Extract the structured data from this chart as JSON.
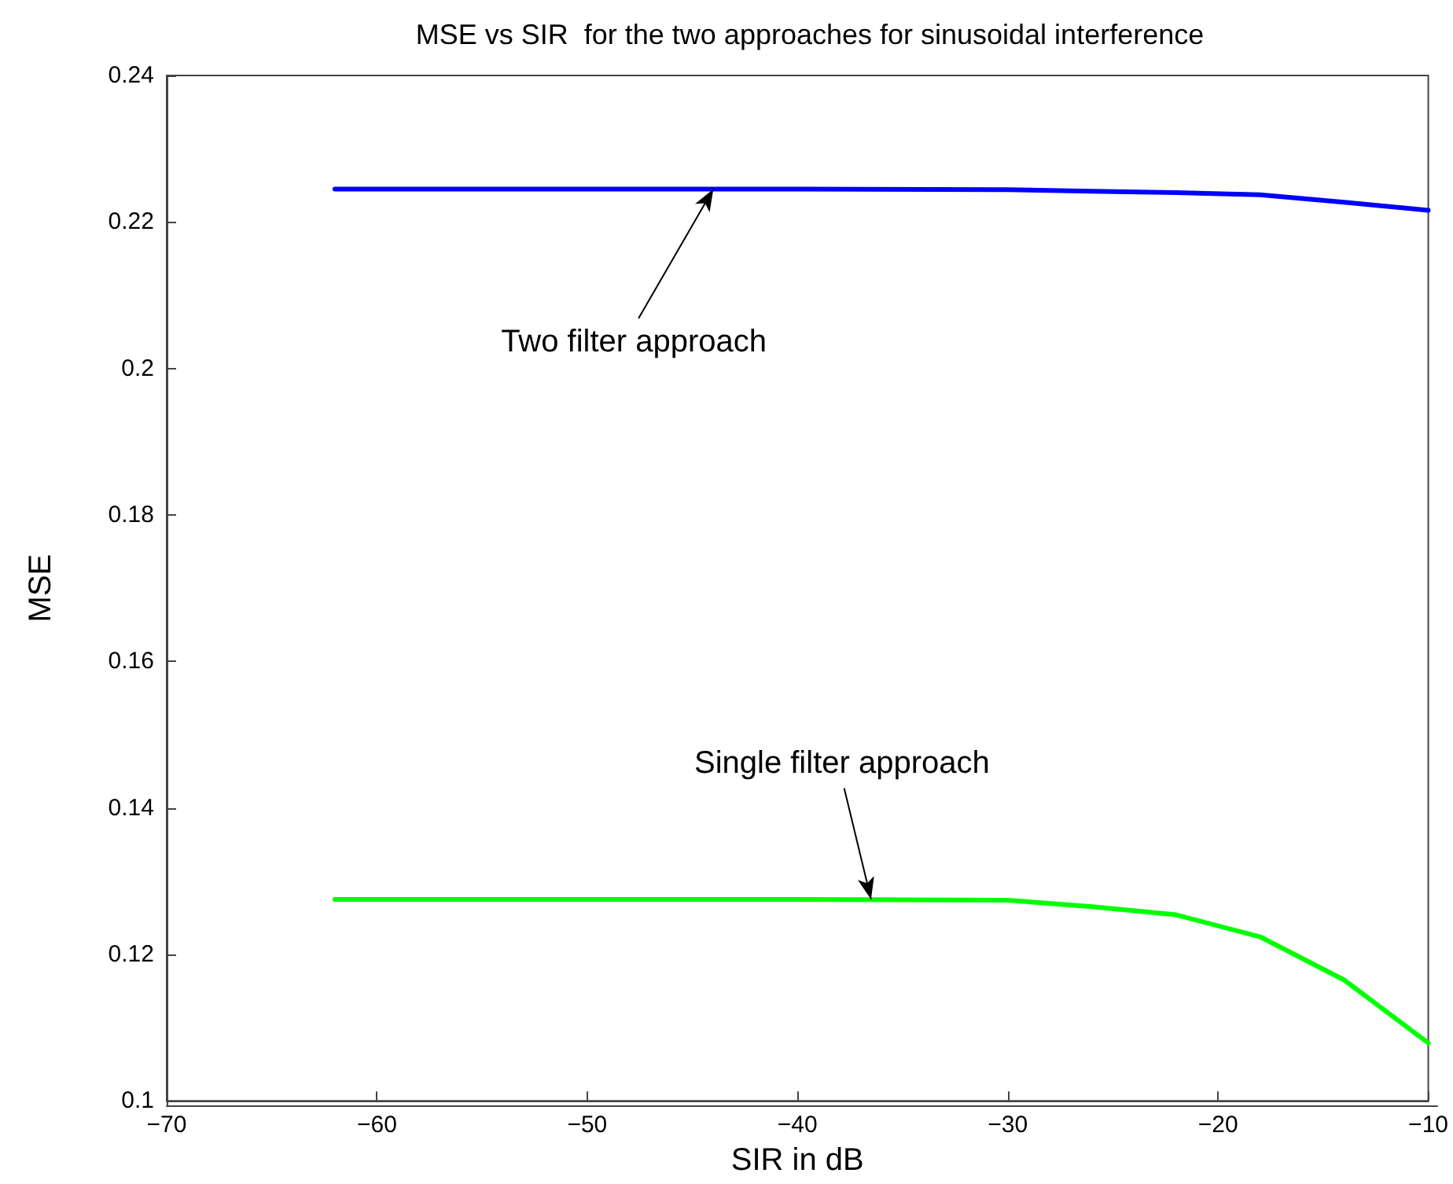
{
  "chart_data": {
    "type": "line",
    "title": "MSE vs SIR  for the two approaches for sinusoidal interference",
    "xlabel": "SIR in dB",
    "ylabel": "MSE",
    "x": [
      -62,
      -50,
      -40,
      -30,
      -26,
      -22,
      -18,
      -14,
      -10
    ],
    "series": [
      {
        "color": "#0000ff",
        "values": [
          0.2245,
          0.2245,
          0.2245,
          0.2244,
          0.2242,
          0.224,
          0.2237,
          0.2227,
          0.2216
        ]
      },
      {
        "color": "#00ff00",
        "values": [
          0.1275,
          0.1275,
          0.1275,
          0.1274,
          0.1265,
          0.1254,
          0.1224,
          0.1165,
          0.1079
        ]
      }
    ],
    "annotations": [
      {
        "text": "Two filter approach",
        "x": -44,
        "y": 0.2245
      },
      {
        "text": "Single filter approach",
        "x": -36.5,
        "y": 0.1275
      }
    ],
    "xlim": [
      -70,
      -10
    ],
    "xticks": [
      -70,
      -60,
      -50,
      -40,
      -30,
      -20,
      -10
    ],
    "ylim": [
      0.1,
      0.24
    ],
    "yticks": [
      0.1,
      0.12,
      0.14,
      0.16,
      0.18,
      0.2,
      0.22,
      0.24
    ],
    "grid": false,
    "marker": "none",
    "line_style": "solid"
  }
}
